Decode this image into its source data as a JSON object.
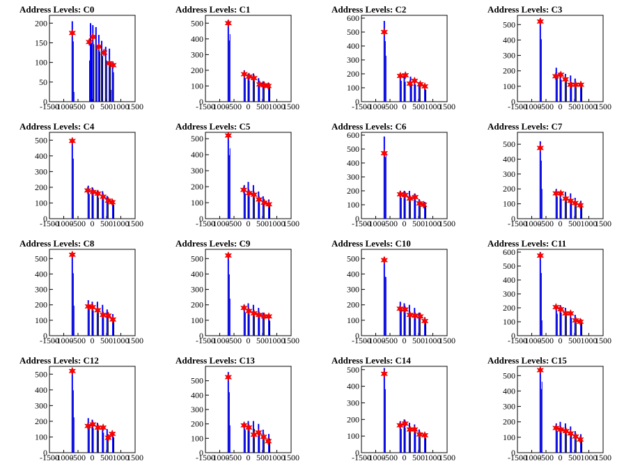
{
  "chart_data": [
    {
      "type": "bar",
      "title": "Address Levels: C0",
      "xlim": [
        -1500,
        1500
      ],
      "ylim": [
        0,
        220
      ],
      "yticks": [
        0,
        50,
        100,
        150,
        200
      ],
      "spikes": [
        [
          -700,
          205,
          25
        ],
        [
          -85,
          105,
          0
        ],
        [
          -60,
          200,
          0
        ],
        [
          20,
          195,
          0
        ],
        [
          130,
          190,
          0
        ],
        [
          230,
          170,
          0
        ],
        [
          330,
          155,
          0
        ],
        [
          470,
          140,
          0
        ],
        [
          600,
          135,
          30
        ],
        [
          710,
          100,
          0
        ]
      ],
      "peaks": [
        [
          -700,
          175
        ],
        [
          -105,
          152
        ],
        [
          20,
          165
        ],
        [
          230,
          140
        ],
        [
          410,
          125
        ],
        [
          600,
          98
        ],
        [
          730,
          93
        ]
      ]
    },
    {
      "type": "bar",
      "title": "Address Levels: C1",
      "xlim": [
        -1500,
        1500
      ],
      "ylim": [
        0,
        550
      ],
      "yticks": [
        0,
        100,
        200,
        300,
        400,
        500
      ],
      "spikes": [
        [
          -700,
          520,
          430
        ],
        [
          -140,
          200,
          0
        ],
        [
          0,
          180,
          0
        ],
        [
          180,
          180,
          0
        ],
        [
          360,
          150,
          0
        ],
        [
          520,
          130,
          0
        ],
        [
          720,
          120,
          0
        ]
      ],
      "peaks": [
        [
          -700,
          500
        ],
        [
          -140,
          175
        ],
        [
          30,
          160
        ],
        [
          200,
          150
        ],
        [
          400,
          110
        ],
        [
          560,
          105
        ],
        [
          700,
          100
        ]
      ]
    },
    {
      "type": "bar",
      "title": "Address Levels: C2",
      "xlim": [
        -1500,
        1500
      ],
      "ylim": [
        0,
        620
      ],
      "yticks": [
        0,
        100,
        200,
        300,
        400,
        500,
        600
      ],
      "spikes": [
        [
          -700,
          580,
          330
        ],
        [
          -140,
          200,
          0
        ],
        [
          0,
          190,
          0
        ],
        [
          220,
          180,
          0
        ],
        [
          360,
          165,
          0
        ],
        [
          520,
          140,
          0
        ],
        [
          720,
          115,
          0
        ]
      ],
      "peaks": [
        [
          -700,
          500
        ],
        [
          -140,
          185
        ],
        [
          40,
          190
        ],
        [
          200,
          130
        ],
        [
          360,
          150
        ],
        [
          560,
          125
        ],
        [
          720,
          110
        ]
      ]
    },
    {
      "type": "bar",
      "title": "Address Levels: C3",
      "xlim": [
        -1500,
        1500
      ],
      "ylim": [
        0,
        560
      ],
      "yticks": [
        0,
        100,
        200,
        300,
        400,
        500
      ],
      "spikes": [
        [
          -700,
          540,
          0
        ],
        [
          -140,
          220,
          0
        ],
        [
          0,
          190,
          0
        ],
        [
          180,
          180,
          0
        ],
        [
          360,
          170,
          0
        ],
        [
          520,
          150,
          0
        ],
        [
          720,
          130,
          0
        ]
      ],
      "peaks": [
        [
          -700,
          520
        ],
        [
          -160,
          165
        ],
        [
          20,
          175
        ],
        [
          180,
          145
        ],
        [
          360,
          110
        ],
        [
          540,
          110
        ],
        [
          720,
          110
        ]
      ]
    },
    {
      "type": "bar",
      "title": "Address Levels: C4",
      "xlim": [
        -1500,
        1500
      ],
      "ylim": [
        0,
        550
      ],
      "yticks": [
        0,
        100,
        200,
        300,
        400,
        500
      ],
      "spikes": [
        [
          -700,
          510,
          0
        ],
        [
          -140,
          210,
          0
        ],
        [
          0,
          200,
          0
        ],
        [
          180,
          180,
          0
        ],
        [
          360,
          175,
          0
        ],
        [
          520,
          145,
          0
        ],
        [
          720,
          120,
          0
        ]
      ],
      "peaks": [
        [
          -700,
          495
        ],
        [
          -160,
          180
        ],
        [
          30,
          170
        ],
        [
          200,
          160
        ],
        [
          380,
          140
        ],
        [
          560,
          115
        ],
        [
          700,
          105
        ]
      ]
    },
    {
      "type": "bar",
      "title": "Address Levels: C5",
      "xlim": [
        -1500,
        1500
      ],
      "ylim": [
        0,
        540
      ],
      "yticks": [
        0,
        100,
        200,
        300,
        400,
        500
      ],
      "spikes": [
        [
          -700,
          530,
          440
        ],
        [
          -140,
          210,
          0
        ],
        [
          0,
          230,
          0
        ],
        [
          180,
          210,
          0
        ],
        [
          360,
          170,
          0
        ],
        [
          520,
          140,
          0
        ],
        [
          720,
          120,
          0
        ]
      ],
      "peaks": [
        [
          -700,
          520
        ],
        [
          -160,
          180
        ],
        [
          30,
          160
        ],
        [
          200,
          150
        ],
        [
          380,
          120
        ],
        [
          560,
          100
        ],
        [
          720,
          90
        ]
      ]
    },
    {
      "type": "bar",
      "title": "Address Levels: C6",
      "xlim": [
        -1500,
        1500
      ],
      "ylim": [
        0,
        620
      ],
      "yticks": [
        0,
        100,
        200,
        300,
        400,
        500,
        600
      ],
      "spikes": [
        [
          -700,
          590,
          480
        ],
        [
          -140,
          200,
          0
        ],
        [
          0,
          200,
          0
        ],
        [
          180,
          200,
          0
        ],
        [
          360,
          180,
          0
        ],
        [
          520,
          140,
          0
        ],
        [
          720,
          120,
          0
        ]
      ],
      "peaks": [
        [
          -700,
          470
        ],
        [
          -140,
          175
        ],
        [
          30,
          170
        ],
        [
          200,
          145
        ],
        [
          380,
          155
        ],
        [
          540,
          110
        ],
        [
          680,
          100
        ]
      ]
    },
    {
      "type": "bar",
      "title": "Address Levels: C7",
      "xlim": [
        -1500,
        1500
      ],
      "ylim": [
        0,
        580
      ],
      "yticks": [
        0,
        100,
        200,
        300,
        400,
        500
      ],
      "spikes": [
        [
          -700,
          520,
          200
        ],
        [
          -140,
          200,
          0
        ],
        [
          0,
          180,
          0
        ],
        [
          180,
          180,
          0
        ],
        [
          360,
          170,
          0
        ],
        [
          520,
          140,
          0
        ],
        [
          720,
          120,
          0
        ]
      ],
      "peaks": [
        [
          -700,
          475
        ],
        [
          -150,
          170
        ],
        [
          20,
          170
        ],
        [
          190,
          135
        ],
        [
          360,
          120
        ],
        [
          520,
          105
        ],
        [
          700,
          90
        ]
      ]
    },
    {
      "type": "bar",
      "title": "Address Levels: C8",
      "xlim": [
        -1500,
        1500
      ],
      "ylim": [
        0,
        560
      ],
      "yticks": [
        0,
        100,
        200,
        300,
        400,
        500
      ],
      "spikes": [
        [
          -700,
          540,
          195
        ],
        [
          -140,
          230,
          0
        ],
        [
          0,
          220,
          0
        ],
        [
          180,
          220,
          0
        ],
        [
          360,
          200,
          0
        ],
        [
          520,
          170,
          0
        ],
        [
          720,
          140,
          0
        ]
      ],
      "peaks": [
        [
          -700,
          525
        ],
        [
          -140,
          190
        ],
        [
          10,
          185
        ],
        [
          190,
          165
        ],
        [
          380,
          135
        ],
        [
          560,
          130
        ],
        [
          720,
          105
        ]
      ]
    },
    {
      "type": "bar",
      "title": "Address Levels: C9",
      "xlim": [
        -1500,
        1500
      ],
      "ylim": [
        0,
        560
      ],
      "yticks": [
        0,
        100,
        200,
        300,
        400,
        500
      ],
      "spikes": [
        [
          -700,
          530,
          240
        ],
        [
          -140,
          200,
          0
        ],
        [
          0,
          210,
          0
        ],
        [
          180,
          200,
          0
        ],
        [
          360,
          180,
          0
        ],
        [
          520,
          150,
          0
        ],
        [
          720,
          130,
          0
        ]
      ],
      "peaks": [
        [
          -700,
          520
        ],
        [
          -150,
          180
        ],
        [
          20,
          160
        ],
        [
          200,
          145
        ],
        [
          380,
          135
        ],
        [
          560,
          125
        ],
        [
          720,
          125
        ]
      ]
    },
    {
      "type": "bar",
      "title": "Address Levels: C10",
      "xlim": [
        -1500,
        1500
      ],
      "ylim": [
        0,
        560
      ],
      "yticks": [
        0,
        100,
        200,
        300,
        400,
        500
      ],
      "spikes": [
        [
          -700,
          510,
          380
        ],
        [
          -140,
          220,
          0
        ],
        [
          0,
          210,
          0
        ],
        [
          180,
          200,
          0
        ],
        [
          360,
          180,
          0
        ],
        [
          520,
          150,
          0
        ],
        [
          720,
          120,
          0
        ]
      ],
      "peaks": [
        [
          -700,
          490
        ],
        [
          -150,
          175
        ],
        [
          30,
          170
        ],
        [
          200,
          135
        ],
        [
          380,
          130
        ],
        [
          560,
          125
        ],
        [
          720,
          95
        ]
      ]
    },
    {
      "type": "bar",
      "title": "Address Levels: C11",
      "xlim": [
        -1500,
        1500
      ],
      "ylim": [
        0,
        620
      ],
      "yticks": [
        0,
        100,
        200,
        300,
        400,
        500,
        600
      ],
      "spikes": [
        [
          -700,
          600,
          110
        ],
        [
          -140,
          210,
          0
        ],
        [
          0,
          220,
          0
        ],
        [
          180,
          200,
          0
        ],
        [
          360,
          170,
          0
        ],
        [
          520,
          150,
          0
        ],
        [
          720,
          120,
          0
        ]
      ],
      "peaks": [
        [
          -700,
          575
        ],
        [
          -150,
          205
        ],
        [
          20,
          190
        ],
        [
          190,
          160
        ],
        [
          360,
          160
        ],
        [
          540,
          110
        ],
        [
          700,
          100
        ]
      ]
    },
    {
      "type": "bar",
      "title": "Address Levels: C12",
      "xlim": [
        -1500,
        1500
      ],
      "ylim": [
        0,
        550
      ],
      "yticks": [
        0,
        100,
        200,
        300,
        400,
        500
      ],
      "spikes": [
        [
          -700,
          530,
          225
        ],
        [
          -140,
          220,
          0
        ],
        [
          0,
          210,
          0
        ],
        [
          180,
          190,
          0
        ],
        [
          360,
          170,
          0
        ],
        [
          520,
          150,
          0
        ],
        [
          720,
          130,
          0
        ]
      ],
      "peaks": [
        [
          -700,
          520
        ],
        [
          -150,
          170
        ],
        [
          20,
          180
        ],
        [
          200,
          160
        ],
        [
          380,
          160
        ],
        [
          560,
          95
        ],
        [
          700,
          120
        ]
      ]
    },
    {
      "type": "bar",
      "title": "Address Levels: C13",
      "xlim": [
        -1500,
        1500
      ],
      "ylim": [
        0,
        600
      ],
      "yticks": [
        0,
        100,
        200,
        300,
        400,
        500
      ],
      "spikes": [
        [
          -700,
          560,
          190
        ],
        [
          -140,
          210,
          0
        ],
        [
          0,
          220,
          0
        ],
        [
          180,
          220,
          0
        ],
        [
          360,
          200,
          0
        ],
        [
          520,
          160,
          0
        ],
        [
          720,
          130,
          0
        ]
      ],
      "peaks": [
        [
          -700,
          525
        ],
        [
          -150,
          190
        ],
        [
          20,
          175
        ],
        [
          200,
          125
        ],
        [
          360,
          140
        ],
        [
          540,
          110
        ],
        [
          700,
          80
        ]
      ]
    },
    {
      "type": "bar",
      "title": "Address Levels: C14",
      "xlim": [
        -1500,
        1500
      ],
      "ylim": [
        0,
        520
      ],
      "yticks": [
        0,
        100,
        200,
        300,
        400,
        500
      ],
      "spikes": [
        [
          -700,
          510,
          0
        ],
        [
          -140,
          190,
          0
        ],
        [
          0,
          200,
          0
        ],
        [
          180,
          180,
          0
        ],
        [
          360,
          170,
          0
        ],
        [
          520,
          140,
          0
        ],
        [
          720,
          120,
          0
        ]
      ],
      "peaks": [
        [
          -700,
          475
        ],
        [
          -150,
          165
        ],
        [
          30,
          175
        ],
        [
          200,
          140
        ],
        [
          360,
          140
        ],
        [
          540,
          110
        ],
        [
          720,
          105
        ]
      ]
    },
    {
      "type": "bar",
      "title": "Address Levels: C15",
      "xlim": [
        -1500,
        1500
      ],
      "ylim": [
        0,
        560
      ],
      "yticks": [
        0,
        100,
        200,
        300,
        400,
        500
      ],
      "spikes": [
        [
          -700,
          550,
          460
        ],
        [
          -140,
          190,
          0
        ],
        [
          0,
          200,
          0
        ],
        [
          180,
          190,
          0
        ],
        [
          360,
          170,
          0
        ],
        [
          520,
          140,
          0
        ],
        [
          720,
          120,
          0
        ]
      ],
      "peaks": [
        [
          -700,
          535
        ],
        [
          -150,
          160
        ],
        [
          20,
          150
        ],
        [
          200,
          140
        ],
        [
          360,
          125
        ],
        [
          540,
          105
        ],
        [
          700,
          85
        ]
      ]
    }
  ],
  "xticks": [
    -1500,
    -1000,
    -500,
    0,
    500,
    1000,
    1500
  ],
  "colors": {
    "spike": "#0000ff",
    "peak_marker": "#ff0000",
    "axis": "#000000"
  }
}
